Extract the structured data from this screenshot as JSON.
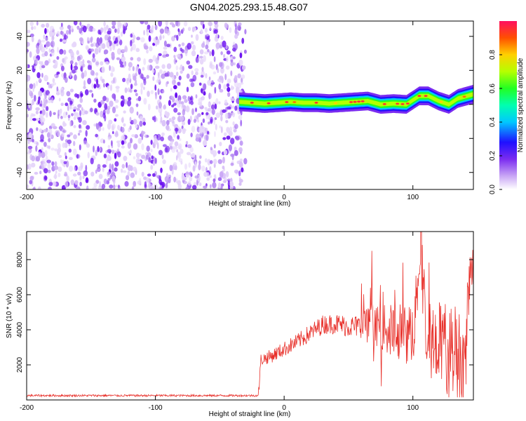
{
  "title": "GN04.2025.293.15.48.G07",
  "chart_data": [
    {
      "type": "heatmap",
      "xlabel": "Height of straight line (km)",
      "ylabel": "Frequency (Hz)",
      "xlim": [
        -200,
        147
      ],
      "ylim": [
        -50,
        49
      ],
      "xticks": [
        -200,
        -100,
        0,
        100
      ],
      "yticks": [
        -40,
        -20,
        0,
        20,
        40
      ],
      "noise_region_x": [
        -200,
        -30
      ],
      "ridge": {
        "x": [
          -35,
          -25,
          -15,
          -5,
          5,
          15,
          25,
          35,
          45,
          55,
          65,
          75,
          85,
          95,
          105,
          112,
          120,
          128,
          135,
          147
        ],
        "freq": [
          1.5,
          1,
          0.5,
          1,
          1.5,
          1,
          1,
          0.5,
          1,
          1.5,
          2,
          0,
          0.5,
          0,
          5,
          5,
          2,
          0,
          3.5,
          6
        ]
      },
      "colorbar": {
        "label": "Normalized spectral amplitude",
        "ticks": [
          "0.0",
          "0.2",
          "0.4",
          "0.6",
          "0.8"
        ],
        "range": [
          0,
          1
        ]
      }
    },
    {
      "type": "line",
      "xlabel": "Height of straight line (km)",
      "ylabel": "SNR (10 * v/v)",
      "xlim": [
        -200,
        147
      ],
      "ylim": [
        0,
        9600
      ],
      "xticks": [
        -200,
        -100,
        0,
        100
      ],
      "yticks": [
        2000,
        4000,
        6000,
        8000
      ],
      "series": [
        {
          "name": "SNR",
          "color": "#e8302a",
          "x": [
            -200,
            -150,
            -100,
            -50,
            -20,
            -18,
            -10,
            0,
            10,
            20,
            30,
            40,
            50,
            60,
            70,
            80,
            90,
            100,
            106,
            110,
            120,
            130,
            140,
            147
          ],
          "values": [
            250,
            250,
            250,
            250,
            250,
            2300,
            2500,
            2900,
            3300,
            3800,
            4300,
            4350,
            4200,
            4200,
            4300,
            4000,
            3900,
            3600,
            9400,
            3500,
            3300,
            3000,
            2400,
            7000
          ]
        }
      ]
    }
  ]
}
